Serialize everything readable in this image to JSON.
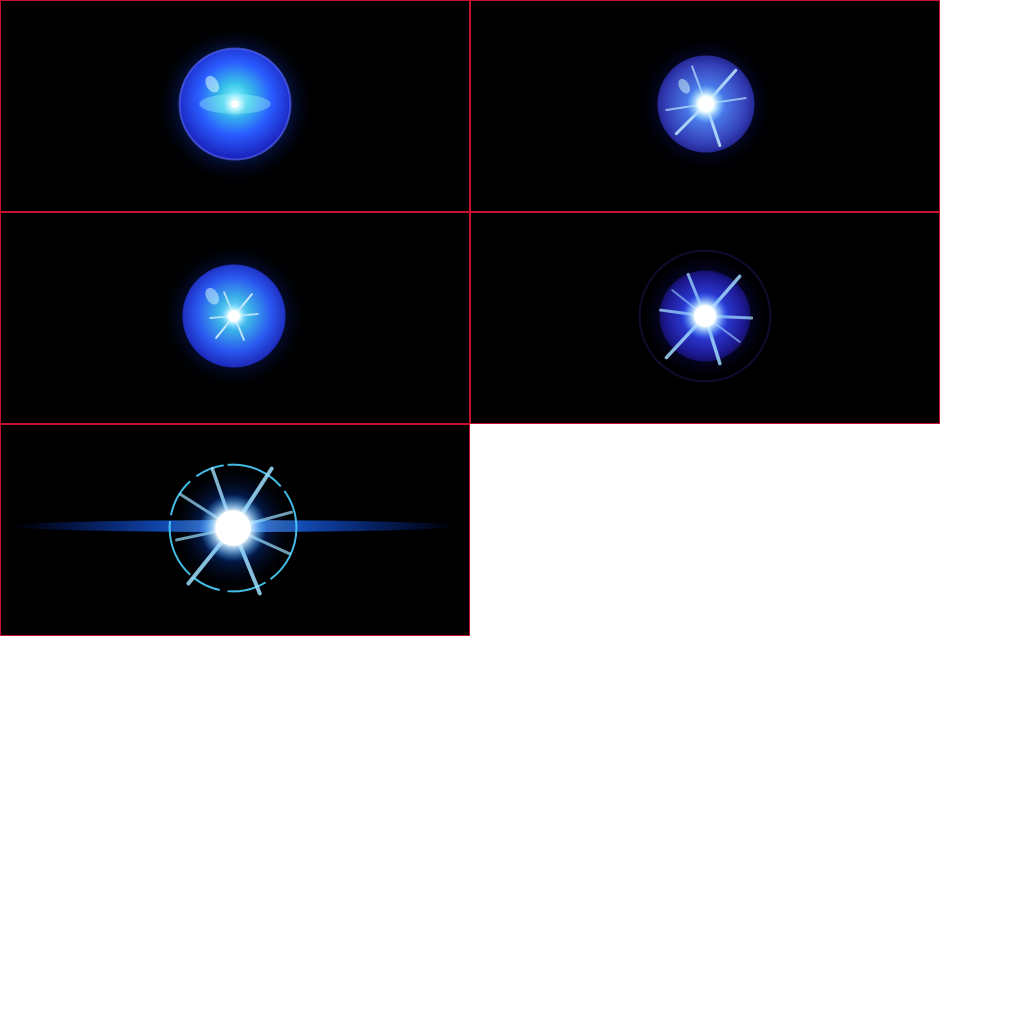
{
  "sprite_sheet": {
    "background_color": "#ffffff",
    "frame_border_color": "#c8102e",
    "frame_background": "#000000",
    "frames": [
      {
        "name": "orb-frame-1",
        "orb_color": "#2b4cff",
        "core_color": "#ffffff",
        "rays": 0,
        "flare_level": 0.0
      },
      {
        "name": "orb-frame-2",
        "orb_color": "#3848c8",
        "core_color": "#ffffff",
        "rays": 8,
        "flare_level": 0.3
      },
      {
        "name": "orb-frame-3",
        "orb_color": "#2a5bff",
        "core_color": "#ffffff",
        "rays": 8,
        "flare_level": 0.2
      },
      {
        "name": "orb-frame-4",
        "orb_color": "#2c35d8",
        "core_color": "#ffffff",
        "rays": 10,
        "flare_level": 0.55
      },
      {
        "name": "orb-frame-5",
        "orb_color": "#1a8cff",
        "core_color": "#ffffff",
        "rays": 12,
        "flare_level": 1.0
      }
    ]
  }
}
